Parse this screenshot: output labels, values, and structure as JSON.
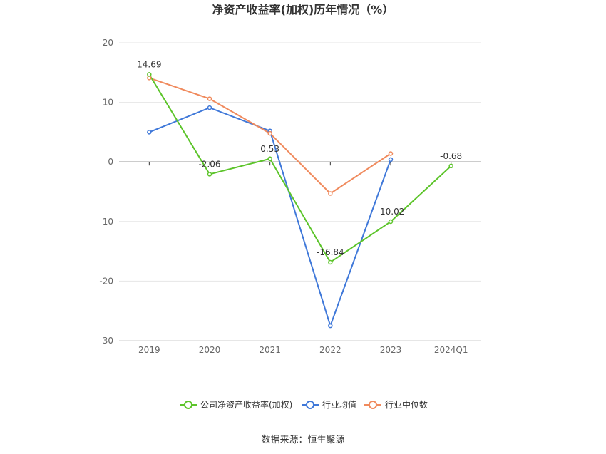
{
  "chart_data": {
    "type": "line",
    "title": "净资产收益率(加权)历年情况（%）",
    "categories": [
      "2019",
      "2020",
      "2021",
      "2022",
      "2023",
      "2024Q1"
    ],
    "yticks": [
      "20",
      "10",
      "0",
      "-10",
      "-20",
      "-30"
    ],
    "ylim": [
      -30,
      20
    ],
    "grid": true,
    "legend_position": "bottom",
    "series": [
      {
        "name": "公司净资产收益率(加权)",
        "color": "#5cc42a",
        "values": [
          14.69,
          -2.06,
          0.53,
          -16.84,
          -10.02,
          -0.68
        ],
        "labels": [
          "14.69",
          "-2.06",
          "0.53",
          "-16.84",
          "-10.02",
          "-0.68"
        ]
      },
      {
        "name": "行业均值",
        "color": "#3f78d9",
        "values": [
          5.0,
          9.1,
          5.2,
          -27.5,
          0.4,
          null
        ]
      },
      {
        "name": "行业中位数",
        "color": "#f08a5d",
        "values": [
          14.1,
          10.6,
          4.8,
          -5.3,
          1.4,
          null
        ]
      }
    ],
    "source": "数据来源：恒生聚源"
  }
}
